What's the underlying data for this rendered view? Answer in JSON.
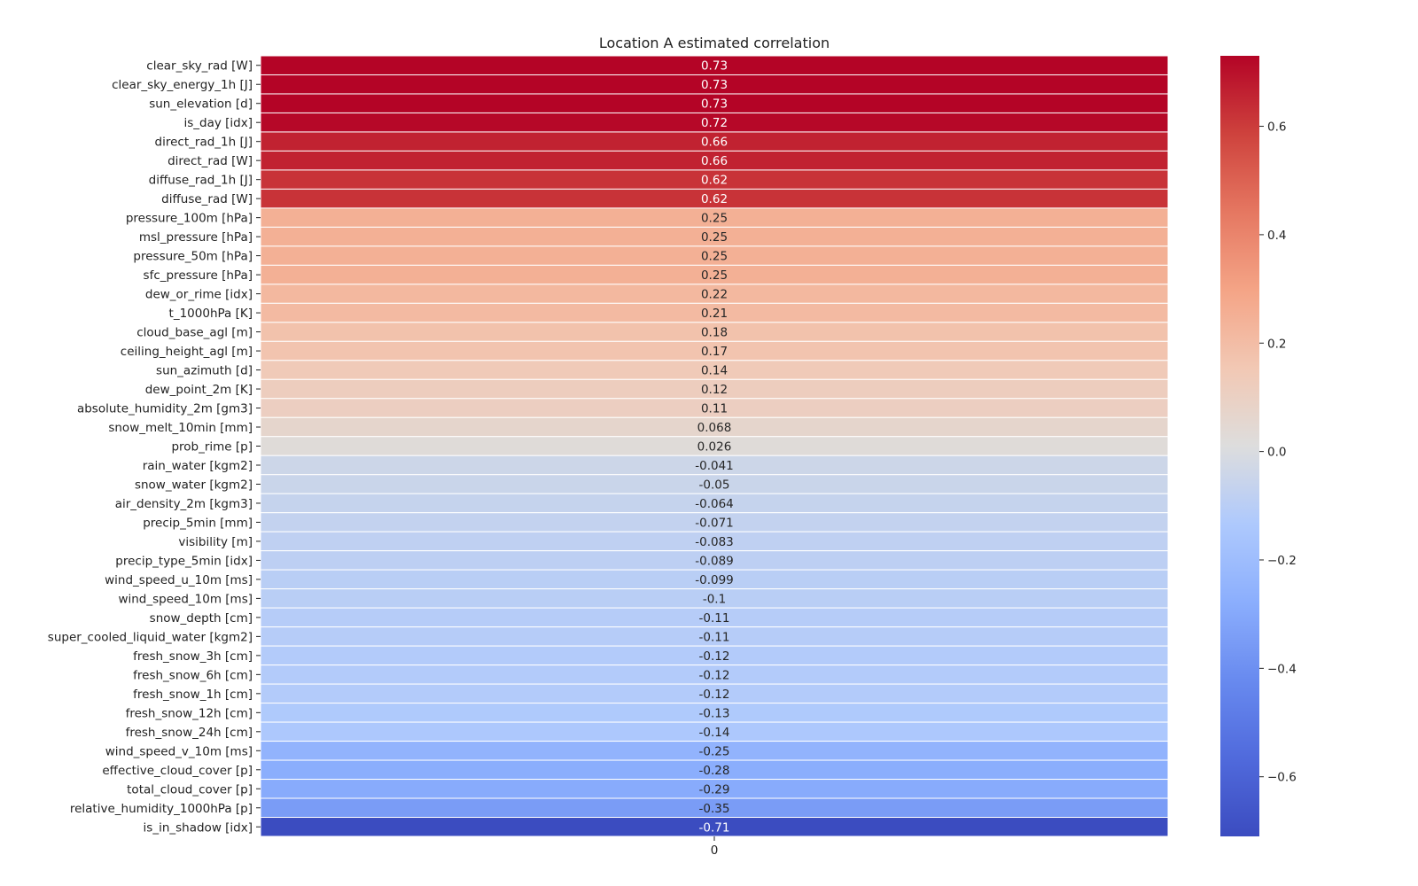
{
  "chart_data": {
    "type": "heatmap",
    "title": "Location A estimated correlation",
    "x_tick_labels": [
      "0"
    ],
    "rows": [
      {
        "label": "clear_sky_rad [W]",
        "value": 0.73,
        "display": "0.73"
      },
      {
        "label": "clear_sky_energy_1h [J]",
        "value": 0.73,
        "display": "0.73"
      },
      {
        "label": "sun_elevation [d]",
        "value": 0.73,
        "display": "0.73"
      },
      {
        "label": "is_day [idx]",
        "value": 0.72,
        "display": "0.72"
      },
      {
        "label": "direct_rad_1h [J]",
        "value": 0.66,
        "display": "0.66"
      },
      {
        "label": "direct_rad [W]",
        "value": 0.66,
        "display": "0.66"
      },
      {
        "label": "diffuse_rad_1h [J]",
        "value": 0.62,
        "display": "0.62"
      },
      {
        "label": "diffuse_rad [W]",
        "value": 0.62,
        "display": "0.62"
      },
      {
        "label": "pressure_100m [hPa]",
        "value": 0.25,
        "display": "0.25"
      },
      {
        "label": "msl_pressure [hPa]",
        "value": 0.25,
        "display": "0.25"
      },
      {
        "label": "pressure_50m [hPa]",
        "value": 0.25,
        "display": "0.25"
      },
      {
        "label": "sfc_pressure [hPa]",
        "value": 0.25,
        "display": "0.25"
      },
      {
        "label": "dew_or_rime [idx]",
        "value": 0.22,
        "display": "0.22"
      },
      {
        "label": "t_1000hPa [K]",
        "value": 0.21,
        "display": "0.21"
      },
      {
        "label": "cloud_base_agl [m]",
        "value": 0.18,
        "display": "0.18"
      },
      {
        "label": "ceiling_height_agl [m]",
        "value": 0.17,
        "display": "0.17"
      },
      {
        "label": "sun_azimuth [d]",
        "value": 0.14,
        "display": "0.14"
      },
      {
        "label": "dew_point_2m [K]",
        "value": 0.12,
        "display": "0.12"
      },
      {
        "label": "absolute_humidity_2m [gm3]",
        "value": 0.11,
        "display": "0.11"
      },
      {
        "label": "snow_melt_10min [mm]",
        "value": 0.068,
        "display": "0.068"
      },
      {
        "label": "prob_rime [p]",
        "value": 0.026,
        "display": "0.026"
      },
      {
        "label": "rain_water [kgm2]",
        "value": -0.041,
        "display": "-0.041"
      },
      {
        "label": "snow_water [kgm2]",
        "value": -0.05,
        "display": "-0.05"
      },
      {
        "label": "air_density_2m [kgm3]",
        "value": -0.064,
        "display": "-0.064"
      },
      {
        "label": "precip_5min [mm]",
        "value": -0.071,
        "display": "-0.071"
      },
      {
        "label": "visibility [m]",
        "value": -0.083,
        "display": "-0.083"
      },
      {
        "label": "precip_type_5min [idx]",
        "value": -0.089,
        "display": "-0.089"
      },
      {
        "label": "wind_speed_u_10m [ms]",
        "value": -0.099,
        "display": "-0.099"
      },
      {
        "label": "wind_speed_10m [ms]",
        "value": -0.1,
        "display": "-0.1"
      },
      {
        "label": "snow_depth [cm]",
        "value": -0.11,
        "display": "-0.11"
      },
      {
        "label": "super_cooled_liquid_water [kgm2]",
        "value": -0.11,
        "display": "-0.11"
      },
      {
        "label": "fresh_snow_3h [cm]",
        "value": -0.12,
        "display": "-0.12"
      },
      {
        "label": "fresh_snow_6h [cm]",
        "value": -0.12,
        "display": "-0.12"
      },
      {
        "label": "fresh_snow_1h [cm]",
        "value": -0.12,
        "display": "-0.12"
      },
      {
        "label": "fresh_snow_12h [cm]",
        "value": -0.13,
        "display": "-0.13"
      },
      {
        "label": "fresh_snow_24h [cm]",
        "value": -0.14,
        "display": "-0.14"
      },
      {
        "label": "wind_speed_v_10m [ms]",
        "value": -0.25,
        "display": "-0.25"
      },
      {
        "label": "effective_cloud_cover [p]",
        "value": -0.28,
        "display": "-0.28"
      },
      {
        "label": "total_cloud_cover [p]",
        "value": -0.29,
        "display": "-0.29"
      },
      {
        "label": "relative_humidity_1000hPa [p]",
        "value": -0.35,
        "display": "-0.35"
      },
      {
        "label": "is_in_shadow [idx]",
        "value": -0.71,
        "display": "-0.71"
      }
    ],
    "colorbar": {
      "colormap": "coolwarm",
      "range": [
        -0.71,
        0.73
      ],
      "ticks": [
        0.6,
        0.4,
        0.2,
        0.0,
        -0.2,
        -0.4,
        -0.6
      ],
      "tick_labels": [
        "0.6",
        "0.4",
        "0.2",
        "0.0",
        "−0.2",
        "−0.4",
        "−0.6"
      ]
    },
    "grid": false
  }
}
